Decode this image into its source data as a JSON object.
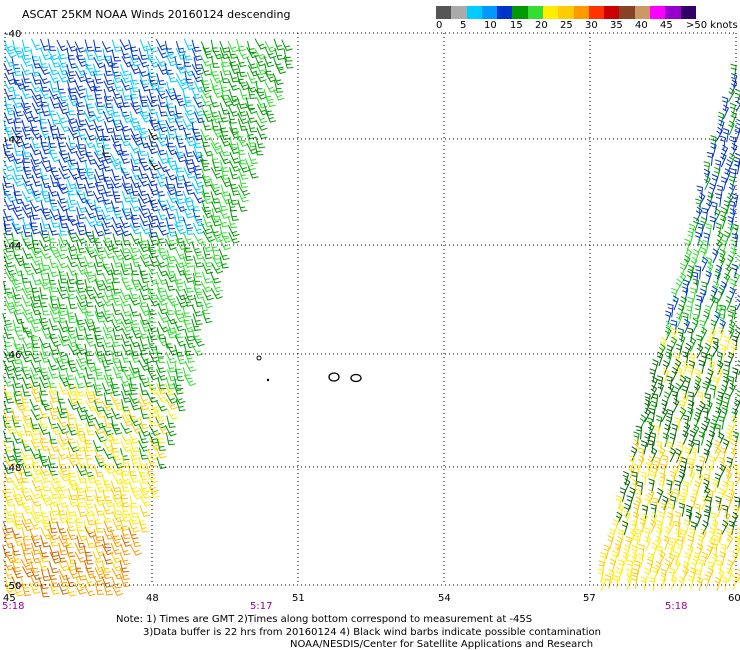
{
  "title": "ASCAT 25KM NOAA Winds 20160124 descending",
  "legend": {
    "colors": [
      "#555555",
      "#aaaaaa",
      "#00ccff",
      "#0099ff",
      "#0033cc",
      "#009900",
      "#33dd33",
      "#ffee00",
      "#ffcc00",
      "#ff9900",
      "#ff3300",
      "#cc0000",
      "#884422",
      "#cc9966",
      "#ff00ff",
      "#9900cc",
      "#330066"
    ],
    "labels": [
      "0",
      "5",
      "10",
      "15",
      "20",
      "25",
      "30",
      "35",
      "40",
      "45",
      ">50 knots"
    ]
  },
  "axes": {
    "lon_labels": [
      "45",
      "48",
      "51",
      "54",
      "57",
      "60"
    ],
    "lat_labels": [
      "-40",
      "-42",
      "-44",
      "-46",
      "-48",
      "-50"
    ],
    "time_labels": [
      "5:18",
      "5:17",
      "5:18"
    ],
    "time_color": "#990099"
  },
  "swaths": {
    "left": {
      "colors": [
        "#0033cc",
        "#00ccff",
        "#009900",
        "#33dd33",
        "#ffee00",
        "#ffcc00",
        "#ff9900",
        "#cc6600",
        "#000000"
      ]
    },
    "right": {
      "colors": [
        "#0033cc",
        "#009900",
        "#33dd33",
        "#006600",
        "#ffee00",
        "#ffcc00"
      ]
    }
  },
  "notes": {
    "line1": "Note: 1) Times are GMT 2)Times along bottom correspond to measurement at -45S",
    "line2": "3)Data buffer is 22 hrs from 20160124 4) Black wind barbs indicate possible contamination",
    "line3": "NOAA/NESDIS/Center for Satellite Applications and Research"
  }
}
